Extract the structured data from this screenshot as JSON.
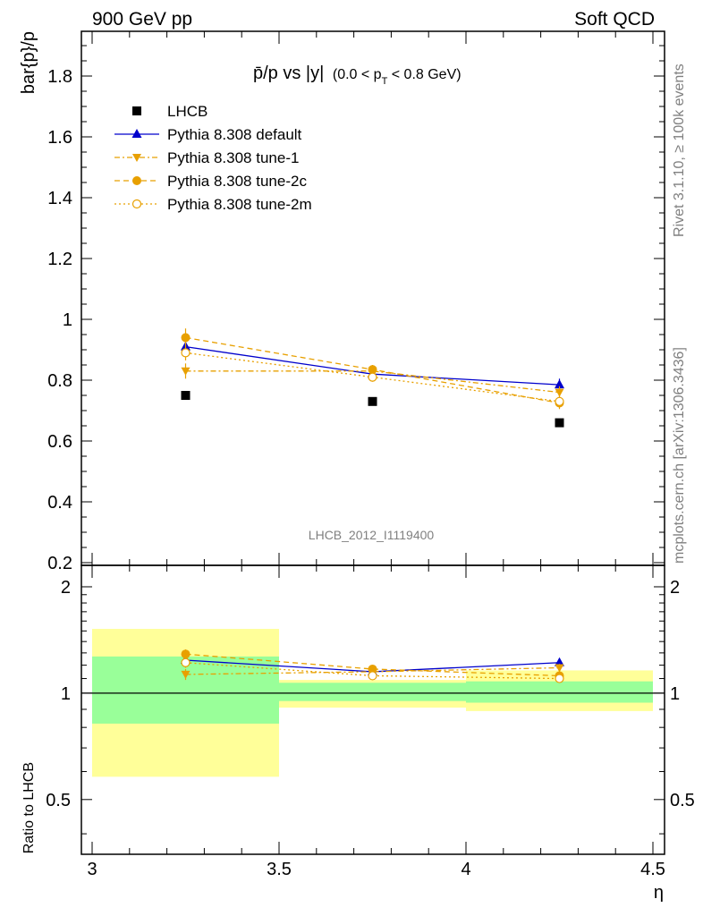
{
  "header": {
    "left": "900 GeV pp",
    "right": "Soft QCD"
  },
  "title": {
    "main": "p̄/p vs |y|",
    "sub_open": "(0.0 < p",
    "sub_sub": "T",
    "sub_close": " < 0.8 GeV)"
  },
  "side_text": {
    "rivet": "Rivet 3.1.10, ≥ 100k events",
    "mcplots": "mcplots.cern.ch [arXiv:1306.3436]"
  },
  "watermark": "LHCB_2012_I1119400",
  "colors": {
    "data": "#000000",
    "default": "#0000cc",
    "tunes": "#e8a000",
    "band_inner": "#99ff99",
    "band_outer": "#ffff99"
  },
  "chart_data": [
    {
      "type": "scatter",
      "panel": "main",
      "ylabel": "bar{p}/p",
      "xlim": [
        3.0,
        4.5
      ],
      "ylim": [
        0.2,
        1.95
      ],
      "yticks": [
        0.2,
        0.4,
        0.6,
        0.8,
        1.0,
        1.2,
        1.4,
        1.6,
        1.8
      ],
      "ytick_labels": [
        "0.2",
        "0.4",
        "0.6",
        "0.8",
        "1",
        "1.2",
        "1.4",
        "1.6",
        "1.8"
      ],
      "legend_position": "top-left",
      "series": [
        {
          "name": "LHCB",
          "style": "data",
          "x": [
            3.25,
            3.75,
            4.25
          ],
          "y": [
            0.75,
            0.73,
            0.66
          ],
          "err": [
            0.0,
            0.0,
            0.0
          ]
        },
        {
          "name": "Pythia 8.308 default",
          "style": "default",
          "x": [
            3.25,
            3.75,
            4.25
          ],
          "y": [
            0.91,
            0.82,
            0.785
          ],
          "err": [
            0.02,
            0.015,
            0.02
          ]
        },
        {
          "name": "Pythia 8.308 tune-1",
          "style": "tune1",
          "x": [
            3.25,
            3.75,
            4.25
          ],
          "y": [
            0.83,
            0.83,
            0.76
          ],
          "err": [
            0.025,
            0.015,
            0.02
          ]
        },
        {
          "name": "Pythia 8.308 tune-2c",
          "style": "tune2c",
          "x": [
            3.25,
            3.75,
            4.25
          ],
          "y": [
            0.94,
            0.835,
            0.725
          ],
          "err": [
            0.03,
            0.015,
            0.02
          ]
        },
        {
          "name": "Pythia 8.308 tune-2m",
          "style": "tune2m",
          "x": [
            3.25,
            3.75,
            4.25
          ],
          "y": [
            0.89,
            0.81,
            0.73
          ],
          "err": [
            0.025,
            0.015,
            0.02
          ]
        }
      ]
    },
    {
      "type": "scatter",
      "panel": "ratio",
      "ylabel": "Ratio to LHCB",
      "xlabel": "η",
      "xlim": [
        3.0,
        4.5
      ],
      "ylim": [
        0.35,
        2.3
      ],
      "log_y": true,
      "xticks": [
        3.0,
        3.5,
        4.0,
        4.5
      ],
      "xtick_labels": [
        "3",
        "3.5",
        "4",
        "4.5"
      ],
      "yticks": [
        0.5,
        1.0,
        2.0
      ],
      "ytick_labels": [
        "0.5",
        "1",
        "2"
      ],
      "bands": [
        {
          "x": [
            3.0,
            3.5
          ],
          "inner": [
            0.82,
            1.27
          ],
          "outer": [
            0.58,
            1.52
          ]
        },
        {
          "x": [
            3.5,
            4.0
          ],
          "inner": [
            0.95,
            1.07
          ],
          "outer": [
            0.91,
            1.09
          ]
        },
        {
          "x": [
            4.0,
            4.5
          ],
          "inner": [
            0.94,
            1.08
          ],
          "outer": [
            0.89,
            1.16
          ]
        }
      ],
      "series": [
        {
          "name": "Pythia 8.308 default",
          "style": "default",
          "x": [
            3.25,
            3.75,
            4.25
          ],
          "y": [
            1.24,
            1.15,
            1.22
          ],
          "err": [
            0.03,
            0.02,
            0.03
          ]
        },
        {
          "name": "Pythia 8.308 tune-1",
          "style": "tune1",
          "x": [
            3.25,
            3.75,
            4.25
          ],
          "y": [
            1.13,
            1.15,
            1.18
          ],
          "err": [
            0.04,
            0.02,
            0.03
          ]
        },
        {
          "name": "Pythia 8.308 tune-2c",
          "style": "tune2c",
          "x": [
            3.25,
            3.75,
            4.25
          ],
          "y": [
            1.29,
            1.17,
            1.12
          ],
          "err": [
            0.04,
            0.02,
            0.03
          ]
        },
        {
          "name": "Pythia 8.308 tune-2m",
          "style": "tune2m",
          "x": [
            3.25,
            3.75,
            4.25
          ],
          "y": [
            1.22,
            1.12,
            1.1
          ],
          "err": [
            0.04,
            0.02,
            0.03
          ]
        }
      ]
    }
  ]
}
